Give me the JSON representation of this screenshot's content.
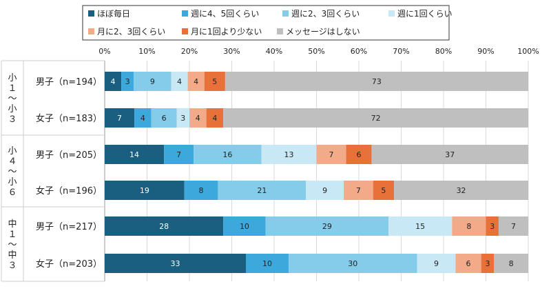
{
  "chart_data": {
    "type": "bar",
    "orientation": "horizontal",
    "stacked": true,
    "percent": true,
    "xlim": [
      0,
      100
    ],
    "xticks": [
      "0%",
      "10%",
      "20%",
      "30%",
      "40%",
      "50%",
      "60%",
      "70%",
      "80%",
      "90%",
      "100%"
    ],
    "grid": true,
    "legend_position": "top",
    "groups": [
      {
        "label": "小１〜小３",
        "rows": [
          "男子（n=194）",
          "女子（n=183）"
        ]
      },
      {
        "label": "小４〜小６",
        "rows": [
          "男子（n=205）",
          "女子（n=196）"
        ]
      },
      {
        "label": "中１〜中３",
        "rows": [
          "男子（n=217）",
          "女子（n=203）"
        ]
      }
    ],
    "categories": [
      "男子（n=194）",
      "女子（n=183）",
      "男子（n=205）",
      "女子（n=196）",
      "男子（n=217）",
      "女子（n=203）"
    ],
    "series": [
      {
        "name": "ほぼ毎日",
        "color": "#1a5e80",
        "label_color": "#ffffff",
        "values": [
          4,
          7,
          14,
          19,
          28,
          33
        ]
      },
      {
        "name": "週に4、5回くらい",
        "color": "#3da8dc",
        "label_color": "#222222",
        "values": [
          3,
          4,
          7,
          8,
          10,
          10
        ]
      },
      {
        "name": "週に2、3回くらい",
        "color": "#85cbea",
        "label_color": "#222222",
        "values": [
          9,
          6,
          16,
          21,
          29,
          30
        ]
      },
      {
        "name": "週に1回くらい",
        "color": "#c9e8f6",
        "label_color": "#222222",
        "values": [
          4,
          3,
          13,
          9,
          15,
          9
        ]
      },
      {
        "name": "月に2、3回くらい",
        "color": "#f2aa88",
        "label_color": "#222222",
        "values": [
          4,
          4,
          7,
          7,
          8,
          6
        ]
      },
      {
        "name": "月に1回より少ない",
        "color": "#e8713a",
        "label_color": "#222222",
        "values": [
          5,
          4,
          6,
          5,
          3,
          3
        ]
      },
      {
        "name": "メッセージはしない",
        "color": "#bfbfbf",
        "label_color": "#222222",
        "values": [
          73,
          72,
          37,
          32,
          7,
          8
        ]
      }
    ]
  }
}
